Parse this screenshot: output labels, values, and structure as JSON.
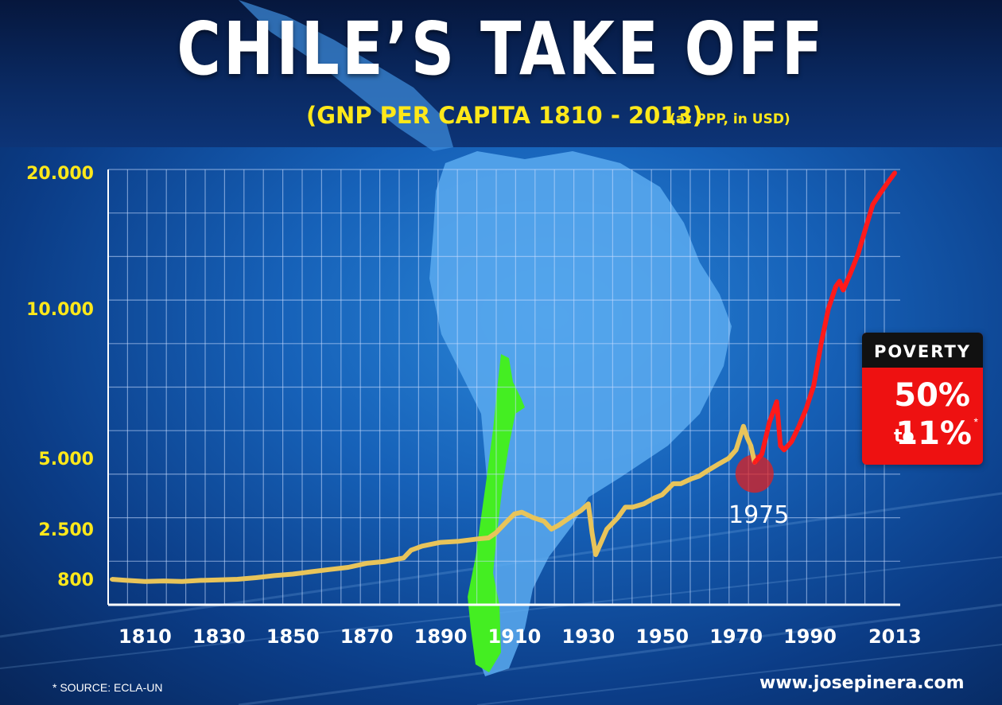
{
  "header": {
    "title": "CHILE’S TAKE OFF",
    "subtitle": "(GNP PER CAPITA 1810 - 2013)",
    "subtitle_note": "(at PPP, in USD)"
  },
  "poverty": {
    "heading": "POVERTY",
    "from": "50%",
    "to_word": "to",
    "to": "11%",
    "marker": "*"
  },
  "annotation_1975": "1975",
  "source": "* SOURCE: ECLA-UN",
  "website": "www.josepinera.com",
  "colors": {
    "pre_1975_line": "#e8c45a",
    "post_1975_line": "#ff1a1a",
    "chile_map": "#44ee22",
    "continent": "#5aaaf0",
    "marker": "#e02020",
    "grid": "#c8dcff",
    "y_tick_labels": "#ffe81a"
  },
  "chart_data": {
    "type": "line",
    "title": "CHILE’S TAKE OFF",
    "subtitle": "(GNP PER CAPITA 1810 - 2013) (at PPP, in USD)",
    "x_tick_labels": [
      "1810",
      "1830",
      "1850",
      "1870",
      "1890",
      "1910",
      "1930",
      "1950",
      "1970",
      "1990",
      "2013"
    ],
    "y_tick_labels": [
      "20.000",
      "10.000",
      "5.000",
      "2.500",
      "800"
    ],
    "y_tick_values": [
      20000,
      10000,
      5000,
      2500,
      800
    ],
    "grid": true,
    "highlight": {
      "x": 1975,
      "label": "1975"
    },
    "series": [
      {
        "segment": "1801-1975",
        "x": [
          1801,
          1805,
          1810,
          1815,
          1820,
          1825,
          1830,
          1835,
          1840,
          1845,
          1850,
          1855,
          1860,
          1865,
          1870,
          1875,
          1880,
          1882,
          1885,
          1890,
          1895,
          1900,
          1903,
          1905,
          1908,
          1910,
          1912,
          1915,
          1918,
          1920,
          1922,
          1925,
          1928,
          1930,
          1931,
          1932,
          1933,
          1935,
          1938,
          1940,
          1942,
          1945,
          1948,
          1950,
          1953,
          1955,
          1958,
          1960,
          1963,
          1965,
          1968,
          1970,
          1972,
          1973,
          1974,
          1975
        ],
        "values": [
          800,
          780,
          760,
          770,
          760,
          780,
          790,
          800,
          830,
          870,
          900,
          950,
          1000,
          1050,
          1150,
          1200,
          1300,
          1550,
          1700,
          1850,
          1900,
          2000,
          2050,
          2300,
          2700,
          2900,
          2950,
          2800,
          2700,
          2500,
          2600,
          2800,
          3000,
          3200,
          2300,
          1400,
          1700,
          2500,
          2800,
          3100,
          3100,
          3200,
          3400,
          3500,
          3900,
          3900,
          4100,
          4200,
          4500,
          4700,
          5000,
          5200,
          5800,
          5500,
          5300,
          4800
        ]
      },
      {
        "segment": "1975-2013",
        "x": [
          1975,
          1977,
          1979,
          1981,
          1982,
          1983,
          1985,
          1987,
          1989,
          1991,
          1993,
          1995,
          1997,
          1998,
          1999,
          2001,
          2003,
          2005,
          2007,
          2009,
          2011,
          2013
        ],
        "values": [
          4800,
          5100,
          5900,
          6500,
          5300,
          5200,
          5400,
          5800,
          6300,
          7000,
          8500,
          10000,
          11200,
          11500,
          11000,
          12000,
          13200,
          15000,
          17000,
          18000,
          19000,
          20000
        ]
      }
    ]
  }
}
